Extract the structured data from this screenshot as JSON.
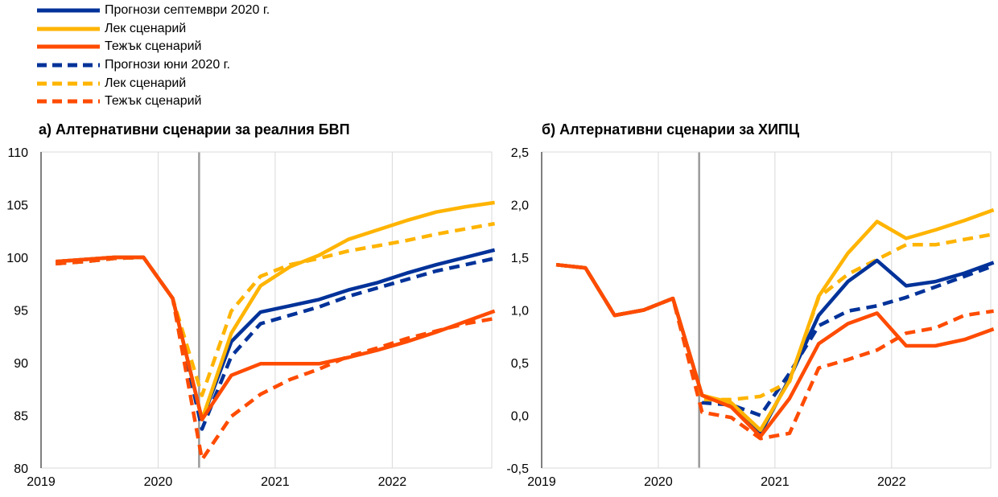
{
  "legend": [
    {
      "label": "Прогнози септември 2020 г.",
      "color": "#003299",
      "dash": false
    },
    {
      "label": "Лек сценарий",
      "color": "#FFB400",
      "dash": false
    },
    {
      "label": "Тежък сценарий",
      "color": "#FF4B00",
      "dash": false
    },
    {
      "label": "Прогнози юни 2020 г.",
      "color": "#003299",
      "dash": true
    },
    {
      "label": "Лек сценарий",
      "color": "#FFB400",
      "dash": true
    },
    {
      "label": "Тежък сценарий",
      "color": "#FF4B00",
      "dash": true
    }
  ],
  "chart_data": [
    {
      "type": "line",
      "title": "а) Алтернативни сценарии за реалния БВП",
      "x_ticks": [
        "2019",
        "2020",
        "2021",
        "2022"
      ],
      "ylim": [
        80,
        110
      ],
      "y_ticks": [
        "80",
        "85",
        "90",
        "95",
        "100",
        "105",
        "110"
      ],
      "projection_start_marker": 5.4,
      "x": [
        0,
        1,
        2,
        3,
        4,
        5,
        6,
        7,
        8,
        9,
        10,
        11,
        12,
        13,
        14,
        15
      ],
      "series": [
        {
          "name": "Прогнози септември 2020 г.",
          "color": "#003299",
          "dash": false,
          "values": [
            99.6,
            99.8,
            100.0,
            100.0,
            96.1,
            84.6,
            92.0,
            94.8,
            95.4,
            96.0,
            96.9,
            97.6,
            98.5,
            99.3,
            100.0,
            100.7
          ]
        },
        {
          "name": "Лек сценарий",
          "color": "#FFB400",
          "dash": false,
          "values": [
            99.6,
            99.8,
            100.0,
            100.0,
            96.1,
            84.6,
            92.8,
            97.3,
            99.1,
            100.2,
            101.7,
            102.6,
            103.5,
            104.3,
            104.8,
            105.2
          ]
        },
        {
          "name": "Тежък сценарий",
          "color": "#FF4B00",
          "dash": false,
          "values": [
            99.6,
            99.8,
            100.0,
            100.0,
            96.1,
            84.6,
            88.8,
            89.9,
            89.9,
            89.9,
            90.5,
            91.2,
            92.0,
            92.9,
            93.9,
            94.9
          ]
        },
        {
          "name": "Прогнози юни 2020 г.",
          "color": "#003299",
          "dash": true,
          "values": [
            99.4,
            99.6,
            99.9,
            100.0,
            96.1,
            83.7,
            90.6,
            93.7,
            94.5,
            95.3,
            96.3,
            97.1,
            97.9,
            98.7,
            99.3,
            99.9
          ]
        },
        {
          "name": "Лек сценарий",
          "color": "#FFB400",
          "dash": true,
          "values": [
            99.4,
            99.6,
            99.9,
            100.0,
            96.1,
            86.9,
            94.9,
            98.2,
            99.3,
            99.9,
            100.6,
            101.1,
            101.6,
            102.2,
            102.7,
            103.2
          ]
        },
        {
          "name": "Тежък сценарий",
          "color": "#FF4B00",
          "dash": true,
          "values": [
            99.4,
            99.6,
            99.9,
            100.0,
            96.1,
            80.8,
            84.9,
            87.0,
            88.4,
            89.4,
            90.6,
            91.4,
            92.3,
            93.0,
            93.7,
            94.2
          ]
        }
      ]
    },
    {
      "type": "line",
      "title": "б) Алтернативни сценарии за ХИПЦ",
      "x_ticks": [
        "2019",
        "2020",
        "2021",
        "2022"
      ],
      "ylim": [
        -0.5,
        2.5
      ],
      "y_ticks": [
        "-0,5",
        "0,0",
        "0,5",
        "1,0",
        "1,5",
        "2,0",
        "2,5"
      ],
      "projection_start_marker": 5.4,
      "x": [
        0,
        1,
        2,
        3,
        4,
        5,
        6,
        7,
        8,
        9,
        10,
        11,
        12,
        13,
        14,
        15
      ],
      "series": [
        {
          "name": "Прогнози септември 2020 г.",
          "color": "#003299",
          "dash": false,
          "values": [
            1.43,
            1.4,
            0.95,
            1.0,
            1.11,
            0.19,
            0.1,
            -0.17,
            0.35,
            0.95,
            1.27,
            1.47,
            1.23,
            1.27,
            1.35,
            1.45
          ]
        },
        {
          "name": "Лек сценарий",
          "color": "#FFB400",
          "dash": false,
          "values": [
            1.43,
            1.4,
            0.95,
            1.0,
            1.11,
            0.19,
            0.12,
            -0.14,
            0.33,
            1.13,
            1.54,
            1.84,
            1.68,
            1.76,
            1.85,
            1.95
          ]
        },
        {
          "name": "Тежък сценарий",
          "color": "#FF4B00",
          "dash": false,
          "values": [
            1.43,
            1.4,
            0.95,
            1.0,
            1.11,
            0.19,
            0.08,
            -0.2,
            0.16,
            0.68,
            0.87,
            0.97,
            0.66,
            0.66,
            0.72,
            0.82
          ]
        },
        {
          "name": "Прогнози юни 2020 г.",
          "color": "#003299",
          "dash": true,
          "values": [
            1.43,
            1.4,
            0.95,
            1.0,
            1.11,
            0.12,
            0.1,
            0.0,
            0.4,
            0.85,
            0.99,
            1.04,
            1.12,
            1.22,
            1.32,
            1.42
          ]
        },
        {
          "name": "Лек сценарий",
          "color": "#FFB400",
          "dash": true,
          "values": [
            1.43,
            1.4,
            0.95,
            1.0,
            1.11,
            0.15,
            0.15,
            0.18,
            0.32,
            1.12,
            1.34,
            1.48,
            1.62,
            1.62,
            1.67,
            1.72
          ]
        },
        {
          "name": "Тежък сценарий",
          "color": "#FF4B00",
          "dash": true,
          "values": [
            1.43,
            1.4,
            0.95,
            1.0,
            1.11,
            0.03,
            -0.02,
            -0.22,
            -0.17,
            0.45,
            0.53,
            0.62,
            0.78,
            0.83,
            0.95,
            0.99
          ]
        }
      ]
    }
  ]
}
